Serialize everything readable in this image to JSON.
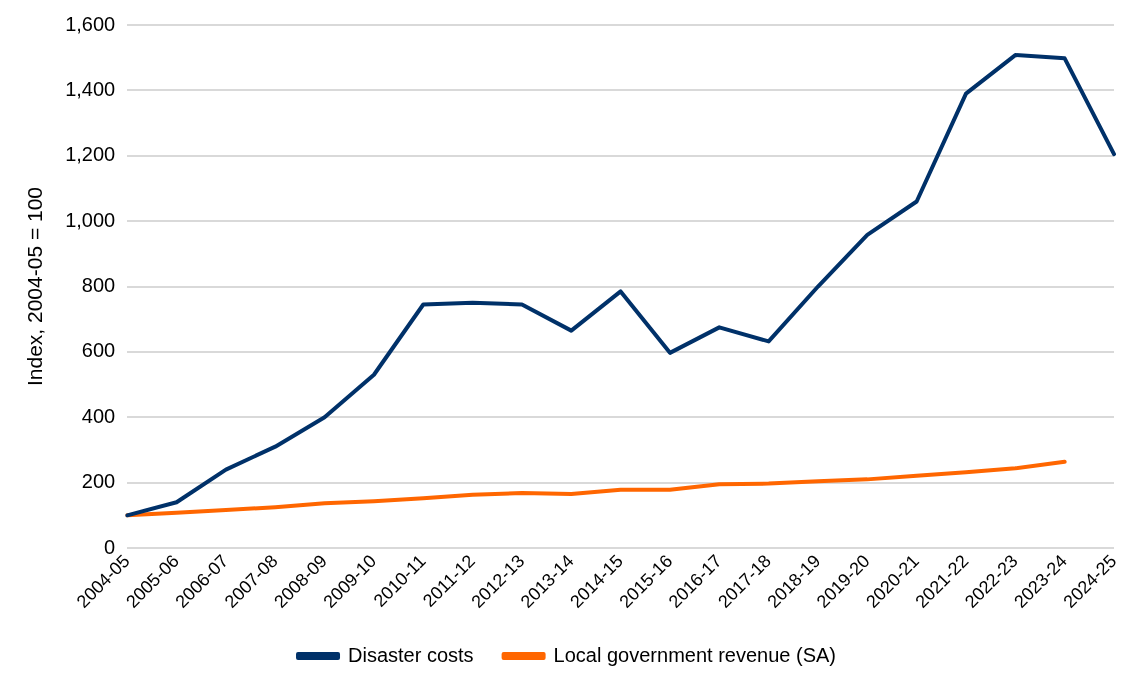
{
  "chart_data": {
    "type": "line",
    "ylabel": "Index, 2004-05 = 100",
    "categories": [
      "2004-05",
      "2005-06",
      "2006-07",
      "2007-08",
      "2008-09",
      "2009-10",
      "2010-11",
      "2011-12",
      "2012-13",
      "2013-14",
      "2014-15",
      "2015-16",
      "2016-17",
      "2017-18",
      "2018-19",
      "2019-20",
      "2020-21",
      "2021-22",
      "2022-23",
      "2023-24",
      "2024-25"
    ],
    "series": [
      {
        "name": "Disaster costs",
        "color": "#003169",
        "values": [
          100,
          140,
          240,
          310,
          400,
          530,
          745,
          750,
          745,
          665,
          785,
          597,
          675,
          632,
          800,
          958,
          1060,
          1390,
          1508,
          1498,
          1205
        ]
      },
      {
        "name": "Local government revenue (SA)",
        "color": "#ff6600",
        "values": [
          100,
          108,
          116,
          125,
          137,
          143,
          152,
          163,
          168,
          165,
          178,
          178,
          195,
          197,
          204,
          210,
          221,
          232,
          244,
          264,
          null
        ]
      }
    ],
    "ylim": [
      0,
      1600
    ],
    "yticks": [
      {
        "value": 0,
        "label": "0"
      },
      {
        "value": 200,
        "label": "200"
      },
      {
        "value": 400,
        "label": "400"
      },
      {
        "value": 600,
        "label": "600"
      },
      {
        "value": 800,
        "label": "800"
      },
      {
        "value": 1000,
        "label": "1,000"
      },
      {
        "value": 1200,
        "label": "1,200"
      },
      {
        "value": 1400,
        "label": "1,400"
      },
      {
        "value": 1600,
        "label": "1,600"
      }
    ],
    "grid": "y",
    "legend": "bottom",
    "marker": "none",
    "line_style": "solid"
  }
}
